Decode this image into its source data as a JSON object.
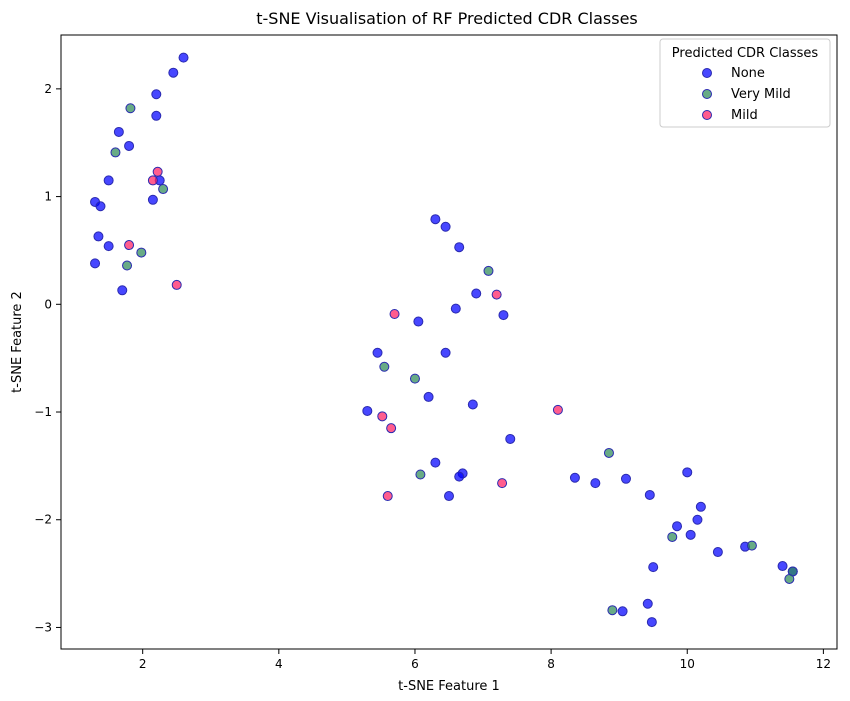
{
  "chart_data": {
    "type": "scatter",
    "title": "t-SNE Visualisation of RF Predicted CDR Classes",
    "xlabel": "t-SNE Feature 1",
    "ylabel": "t-SNE Feature 2",
    "xlim": [
      0.8,
      12.2
    ],
    "ylim": [
      -3.2,
      2.5
    ],
    "xticks": [
      2,
      4,
      6,
      8,
      10,
      12
    ],
    "yticks": [
      -3,
      -2,
      -1,
      0,
      1,
      2
    ],
    "grid": false,
    "legend": {
      "title": "Predicted CDR Classes",
      "position": "top-right"
    },
    "series": [
      {
        "name": "None",
        "color": "#0000ff",
        "edge": "#2a2ab0",
        "points": [
          [
            2.6,
            2.29
          ],
          [
            2.45,
            2.15
          ],
          [
            2.2,
            1.95
          ],
          [
            2.2,
            1.75
          ],
          [
            1.65,
            1.6
          ],
          [
            1.8,
            1.47
          ],
          [
            1.5,
            1.15
          ],
          [
            2.25,
            1.15
          ],
          [
            2.15,
            0.97
          ],
          [
            1.3,
            0.95
          ],
          [
            1.38,
            0.91
          ],
          [
            1.35,
            0.63
          ],
          [
            1.5,
            0.54
          ],
          [
            1.3,
            0.38
          ],
          [
            1.7,
            0.13
          ],
          [
            6.3,
            0.79
          ],
          [
            6.45,
            0.72
          ],
          [
            6.65,
            0.53
          ],
          [
            6.9,
            0.1
          ],
          [
            6.6,
            -0.04
          ],
          [
            7.3,
            -0.1
          ],
          [
            6.05,
            -0.16
          ],
          [
            5.45,
            -0.45
          ],
          [
            6.45,
            -0.45
          ],
          [
            6.2,
            -0.86
          ],
          [
            6.85,
            -0.93
          ],
          [
            5.3,
            -0.99
          ],
          [
            7.4,
            -1.25
          ],
          [
            6.3,
            -1.47
          ],
          [
            6.7,
            -1.57
          ],
          [
            6.65,
            -1.6
          ],
          [
            6.5,
            -1.78
          ],
          [
            8.35,
            -1.61
          ],
          [
            8.65,
            -1.66
          ],
          [
            9.1,
            -1.62
          ],
          [
            9.45,
            -1.77
          ],
          [
            10.0,
            -1.56
          ],
          [
            10.2,
            -1.88
          ],
          [
            10.15,
            -2.0
          ],
          [
            9.85,
            -2.06
          ],
          [
            10.05,
            -2.14
          ],
          [
            10.45,
            -2.3
          ],
          [
            9.5,
            -2.44
          ],
          [
            10.85,
            -2.25
          ],
          [
            11.4,
            -2.43
          ],
          [
            11.55,
            -2.48
          ],
          [
            9.42,
            -2.78
          ],
          [
            9.05,
            -2.85
          ],
          [
            9.48,
            -2.95
          ]
        ]
      },
      {
        "name": "Very Mild",
        "color": "#2e8b57",
        "edge": "#2a2ab0",
        "points": [
          [
            1.82,
            1.82
          ],
          [
            1.6,
            1.41
          ],
          [
            2.3,
            1.07
          ],
          [
            1.98,
            0.48
          ],
          [
            1.77,
            0.36
          ],
          [
            7.08,
            0.31
          ],
          [
            5.55,
            -0.58
          ],
          [
            6.0,
            -0.69
          ],
          [
            6.08,
            -1.58
          ],
          [
            8.85,
            -1.38
          ],
          [
            9.78,
            -2.16
          ],
          [
            10.95,
            -2.24
          ],
          [
            11.55,
            -2.48
          ],
          [
            11.5,
            -2.55
          ],
          [
            8.9,
            -2.84
          ]
        ]
      },
      {
        "name": "Mild",
        "color": "#ff1e62",
        "edge": "#2a2ab0",
        "points": [
          [
            2.22,
            1.23
          ],
          [
            2.15,
            1.15
          ],
          [
            1.8,
            0.55
          ],
          [
            2.5,
            0.18
          ],
          [
            7.2,
            0.09
          ],
          [
            5.7,
            -0.09
          ],
          [
            8.1,
            -0.98
          ],
          [
            5.52,
            -1.04
          ],
          [
            5.65,
            -1.15
          ],
          [
            7.28,
            -1.66
          ],
          [
            5.6,
            -1.78
          ]
        ]
      }
    ]
  }
}
